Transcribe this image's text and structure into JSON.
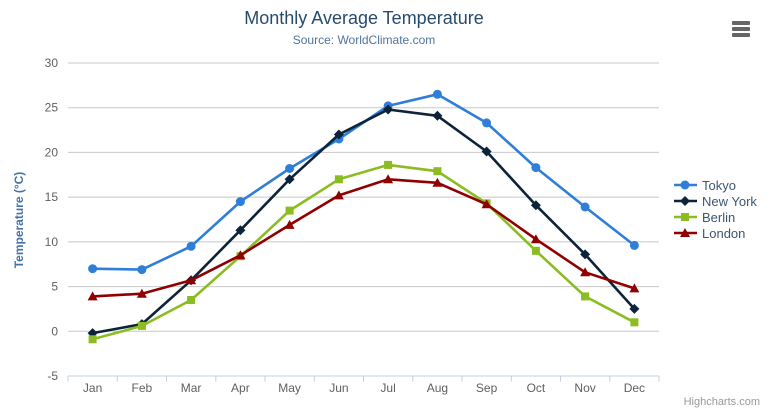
{
  "header": {
    "title": "Monthly Average Temperature",
    "subtitle": "Source: WorldClimate.com"
  },
  "menu": {
    "icon": "hamburger-icon"
  },
  "credits": {
    "label": "Highcharts.com"
  },
  "colors": {
    "title": "#274b6d",
    "subtitle": "#4d759e",
    "axis_title": "#4572a7",
    "tick_label": "#606060",
    "gridline": "#c8c8c8",
    "axis_line": "#c0d0e0",
    "tick_mark": "#c0d0e0",
    "legend_text": "#3e576f",
    "credits_text": "#999999",
    "menu_icon": "#666666"
  },
  "chart_data": {
    "type": "line",
    "title": "Monthly Average Temperature",
    "subtitle": "Source: WorldClimate.com",
    "xlabel": "",
    "ylabel": "Temperature (°C)",
    "ylim": [
      -5,
      30
    ],
    "tick_interval": 5,
    "grid": true,
    "legend_position": "right",
    "categories": [
      "Jan",
      "Feb",
      "Mar",
      "Apr",
      "May",
      "Jun",
      "Jul",
      "Aug",
      "Sep",
      "Oct",
      "Nov",
      "Dec"
    ],
    "series": [
      {
        "name": "Tokyo",
        "color": "#2f7ed8",
        "marker": "circle",
        "values": [
          7.0,
          6.9,
          9.5,
          14.5,
          18.2,
          21.5,
          25.2,
          26.5,
          23.3,
          18.3,
          13.9,
          9.6
        ]
      },
      {
        "name": "New York",
        "color": "#0d233a",
        "marker": "diamond",
        "values": [
          -0.2,
          0.8,
          5.7,
          11.3,
          17.0,
          22.0,
          24.8,
          24.1,
          20.1,
          14.1,
          8.6,
          2.5
        ]
      },
      {
        "name": "Berlin",
        "color": "#8bbc21",
        "marker": "square",
        "values": [
          -0.9,
          0.6,
          3.5,
          8.4,
          13.5,
          17.0,
          18.6,
          17.9,
          14.3,
          9.0,
          3.9,
          1.0
        ]
      },
      {
        "name": "London",
        "color": "#910000",
        "marker": "triangle",
        "values": [
          3.9,
          4.2,
          5.7,
          8.5,
          11.9,
          15.2,
          17.0,
          16.6,
          14.2,
          10.3,
          6.6,
          4.8
        ]
      }
    ]
  }
}
